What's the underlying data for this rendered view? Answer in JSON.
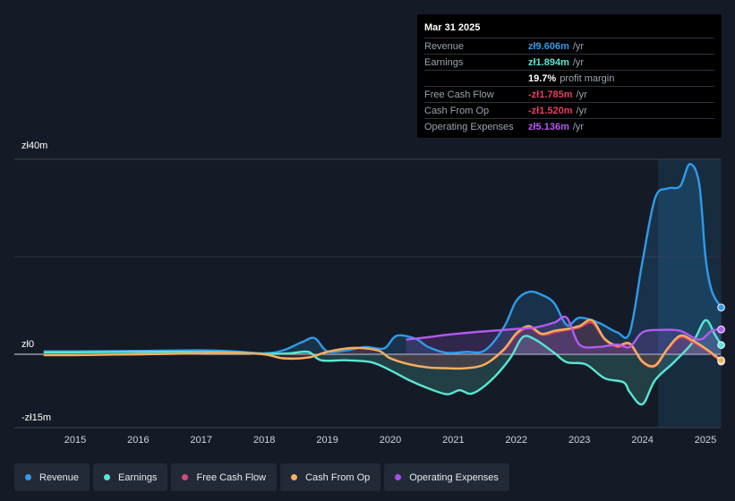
{
  "tooltip": {
    "date": "Mar 31 2025",
    "rows": [
      {
        "label": "Revenue",
        "value": "zł9.606m",
        "unit": "/yr",
        "color": "#2f9bea"
      },
      {
        "label": "Earnings",
        "value": "zł1.894m",
        "unit": "/yr",
        "color": "#59e6d2"
      },
      {
        "label": "",
        "value": "19.7%",
        "unit": "profit margin",
        "color": "#ffffff"
      },
      {
        "label": "Free Cash Flow",
        "value": "-zł1.785m",
        "unit": "/yr",
        "color": "#e0435e"
      },
      {
        "label": "Cash From Op",
        "value": "-zł1.520m",
        "unit": "/yr",
        "color": "#e0435e"
      },
      {
        "label": "Operating Expenses",
        "value": "zł5.136m",
        "unit": "/yr",
        "color": "#b45af2"
      }
    ]
  },
  "legend": [
    {
      "label": "Revenue",
      "color": "#2f9bea"
    },
    {
      "label": "Earnings",
      "color": "#59e6d2"
    },
    {
      "label": "Free Cash Flow",
      "color": "#d04a7e"
    },
    {
      "label": "Cash From Op",
      "color": "#f0b15e"
    },
    {
      "label": "Operating Expenses",
      "color": "#a64ff0"
    }
  ],
  "chart_data": {
    "type": "line",
    "title": "",
    "xlabel": "",
    "ylabel": "",
    "ylim": [
      -15,
      40
    ],
    "y_tick_labels": {
      "top": "zł40m",
      "zero": "zł0",
      "bottom": "-zł15m"
    },
    "x_tick_labels": [
      "2015",
      "2016",
      "2017",
      "2018",
      "2019",
      "2020",
      "2021",
      "2022",
      "2023",
      "2024",
      "2025"
    ],
    "x_ticks": [
      2015,
      2016,
      2017,
      2018,
      2019,
      2020,
      2021,
      2022,
      2023,
      2024,
      2025
    ],
    "highlight_range": [
      2024.25,
      2025.25
    ],
    "series": [
      {
        "name": "Revenue",
        "color": "#2f9bea",
        "fill": true,
        "points": [
          [
            2014.5,
            0.6
          ],
          [
            2015,
            0.6
          ],
          [
            2016,
            0.7
          ],
          [
            2017,
            0.8
          ],
          [
            2017.5,
            0.6
          ],
          [
            2018,
            0.2
          ],
          [
            2018.3,
            0.8
          ],
          [
            2018.6,
            2.5
          ],
          [
            2018.8,
            3.3
          ],
          [
            2019,
            0.6
          ],
          [
            2019.3,
            0.8
          ],
          [
            2019.6,
            1.5
          ],
          [
            2019.9,
            1.2
          ],
          [
            2020.1,
            3.8
          ],
          [
            2020.4,
            3.2
          ],
          [
            2020.6,
            1.5
          ],
          [
            2020.9,
            0.3
          ],
          [
            2021.2,
            0.5
          ],
          [
            2021.5,
            0.8
          ],
          [
            2021.8,
            5.5
          ],
          [
            2022.0,
            11.0
          ],
          [
            2022.2,
            12.8
          ],
          [
            2022.4,
            12.2
          ],
          [
            2022.6,
            10.5
          ],
          [
            2022.8,
            6.0
          ],
          [
            2023.0,
            7.5
          ],
          [
            2023.3,
            6.5
          ],
          [
            2023.6,
            4.5
          ],
          [
            2023.8,
            4.5
          ],
          [
            2024.0,
            19.0
          ],
          [
            2024.2,
            32.0
          ],
          [
            2024.4,
            34.0
          ],
          [
            2024.6,
            34.5
          ],
          [
            2024.75,
            39.0
          ],
          [
            2024.9,
            35.0
          ],
          [
            2025.0,
            20.0
          ],
          [
            2025.1,
            13.0
          ],
          [
            2025.25,
            9.6
          ]
        ]
      },
      {
        "name": "Earnings",
        "color": "#59e6d2",
        "fill": true,
        "points": [
          [
            2014.5,
            0.4
          ],
          [
            2015,
            0.4
          ],
          [
            2016,
            0.5
          ],
          [
            2017,
            0.5
          ],
          [
            2017.5,
            0.4
          ],
          [
            2018,
            0.1
          ],
          [
            2018.4,
            0.2
          ],
          [
            2018.7,
            0.5
          ],
          [
            2018.9,
            -1.5
          ],
          [
            2019.3,
            -1.5
          ],
          [
            2019.7,
            -2.0
          ],
          [
            2020.0,
            -4.0
          ],
          [
            2020.3,
            -6.5
          ],
          [
            2020.6,
            -8.5
          ],
          [
            2020.9,
            -10.0
          ],
          [
            2021.1,
            -9.0
          ],
          [
            2021.3,
            -9.8
          ],
          [
            2021.6,
            -6.5
          ],
          [
            2021.9,
            -1.0
          ],
          [
            2022.1,
            3.5
          ],
          [
            2022.3,
            3.0
          ],
          [
            2022.6,
            0.3
          ],
          [
            2022.8,
            -2.0
          ],
          [
            2023.1,
            -2.5
          ],
          [
            2023.4,
            -6.0
          ],
          [
            2023.7,
            -7.0
          ],
          [
            2023.8,
            -9.5
          ],
          [
            2024.0,
            -12.5
          ],
          [
            2024.2,
            -6.5
          ],
          [
            2024.5,
            -2.0
          ],
          [
            2024.8,
            2.5
          ],
          [
            2025.0,
            7.0
          ],
          [
            2025.15,
            4.0
          ],
          [
            2025.25,
            1.9
          ]
        ]
      },
      {
        "name": "Free Cash Flow",
        "color": "#e0435e",
        "fill": true,
        "points": [
          [
            2014.5,
            -0.2
          ],
          [
            2015,
            -0.2
          ],
          [
            2016,
            0.0
          ],
          [
            2017,
            0.2
          ],
          [
            2017.5,
            0.3
          ],
          [
            2018,
            0.0
          ],
          [
            2018.3,
            -1.0
          ],
          [
            2018.7,
            -0.8
          ],
          [
            2019,
            0.5
          ],
          [
            2019.4,
            1.3
          ],
          [
            2019.8,
            0.8
          ],
          [
            2020.0,
            -1.0
          ],
          [
            2020.3,
            -2.5
          ],
          [
            2020.6,
            -3.3
          ],
          [
            2020.9,
            -3.5
          ],
          [
            2021.2,
            -3.5
          ],
          [
            2021.5,
            -2.5
          ],
          [
            2021.8,
            0.8
          ],
          [
            2022.0,
            4.0
          ],
          [
            2022.2,
            5.5
          ],
          [
            2022.4,
            4.0
          ],
          [
            2022.6,
            4.5
          ],
          [
            2022.8,
            5.0
          ],
          [
            2023.0,
            5.5
          ],
          [
            2023.2,
            6.5
          ],
          [
            2023.4,
            3.0
          ],
          [
            2023.6,
            1.5
          ],
          [
            2023.8,
            2.0
          ],
          [
            2024.0,
            -2.0
          ],
          [
            2024.2,
            -3.0
          ],
          [
            2024.4,
            1.0
          ],
          [
            2024.6,
            3.5
          ],
          [
            2024.8,
            2.5
          ],
          [
            2025.0,
            1.0
          ],
          [
            2025.25,
            -1.8
          ]
        ]
      },
      {
        "name": "Cash From Op",
        "color": "#f0b15e",
        "fill": false,
        "points": [
          [
            2014.5,
            -0.2
          ],
          [
            2015,
            -0.2
          ],
          [
            2016,
            0.0
          ],
          [
            2017,
            0.2
          ],
          [
            2017.5,
            0.3
          ],
          [
            2018,
            0.0
          ],
          [
            2018.3,
            -1.0
          ],
          [
            2018.7,
            -0.8
          ],
          [
            2019,
            0.5
          ],
          [
            2019.4,
            1.3
          ],
          [
            2019.8,
            0.8
          ],
          [
            2020.0,
            -1.0
          ],
          [
            2020.3,
            -2.5
          ],
          [
            2020.6,
            -3.3
          ],
          [
            2020.9,
            -3.5
          ],
          [
            2021.2,
            -3.5
          ],
          [
            2021.5,
            -2.5
          ],
          [
            2021.8,
            1.0
          ],
          [
            2022.0,
            4.3
          ],
          [
            2022.2,
            5.8
          ],
          [
            2022.4,
            4.2
          ],
          [
            2022.6,
            4.8
          ],
          [
            2022.8,
            5.2
          ],
          [
            2023.0,
            5.8
          ],
          [
            2023.2,
            7.0
          ],
          [
            2023.4,
            3.2
          ],
          [
            2023.6,
            1.8
          ],
          [
            2023.8,
            2.2
          ],
          [
            2024.0,
            -1.8
          ],
          [
            2024.2,
            -2.8
          ],
          [
            2024.4,
            1.2
          ],
          [
            2024.6,
            3.8
          ],
          [
            2024.8,
            2.8
          ],
          [
            2025.0,
            1.2
          ],
          [
            2025.25,
            -1.5
          ]
        ]
      },
      {
        "name": "Operating Expenses",
        "color": "#b45af2",
        "fill": true,
        "points": [
          [
            2020.25,
            3.0
          ],
          [
            2020.6,
            3.5
          ],
          [
            2020.9,
            4.0
          ],
          [
            2021.3,
            4.5
          ],
          [
            2021.6,
            4.8
          ],
          [
            2022.0,
            5.2
          ],
          [
            2022.3,
            5.5
          ],
          [
            2022.6,
            6.5
          ],
          [
            2022.8,
            7.5
          ],
          [
            2023.0,
            2.0
          ],
          [
            2023.3,
            1.5
          ],
          [
            2023.6,
            2.0
          ],
          [
            2023.8,
            1.5
          ],
          [
            2024.0,
            4.5
          ],
          [
            2024.3,
            5.0
          ],
          [
            2024.6,
            4.8
          ],
          [
            2024.9,
            3.0
          ],
          [
            2025.1,
            4.8
          ],
          [
            2025.25,
            5.1
          ]
        ]
      }
    ]
  }
}
